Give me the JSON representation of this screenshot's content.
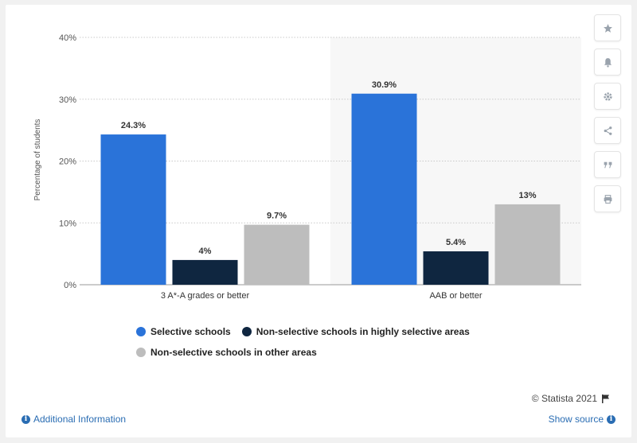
{
  "chart_data": {
    "type": "bar",
    "categories": [
      "3 A*-A grades or better",
      "AAB or better"
    ],
    "series": [
      {
        "name": "Selective schools",
        "values": [
          24.3,
          30.9
        ],
        "labels": [
          "24.3%",
          "30.9%"
        ],
        "color": "#2a73d9"
      },
      {
        "name": "Non-selective schools in highly selective areas",
        "values": [
          4,
          5.4
        ],
        "labels": [
          "4%",
          "5.4%"
        ],
        "color": "#0f2640"
      },
      {
        "name": "Non-selective schools in other areas",
        "values": [
          9.7,
          13
        ],
        "labels": [
          "9.7%",
          "13%"
        ],
        "color": "#bdbdbd"
      }
    ],
    "ylabel": "Percentage of students",
    "ylim": [
      0,
      40
    ],
    "yticks": [
      0,
      10,
      20,
      30,
      40
    ],
    "ytick_labels": [
      "0%",
      "10%",
      "20%",
      "30%",
      "40%"
    ],
    "grid": true,
    "legend_position": "bottom"
  },
  "toolbar": {
    "icons": [
      "star-icon",
      "bell-icon",
      "gear-icon",
      "share-icon",
      "quote-icon",
      "print-icon"
    ]
  },
  "footer": {
    "copyright": "© Statista 2021",
    "additional_info": "Additional Information",
    "show_source": "Show source"
  }
}
